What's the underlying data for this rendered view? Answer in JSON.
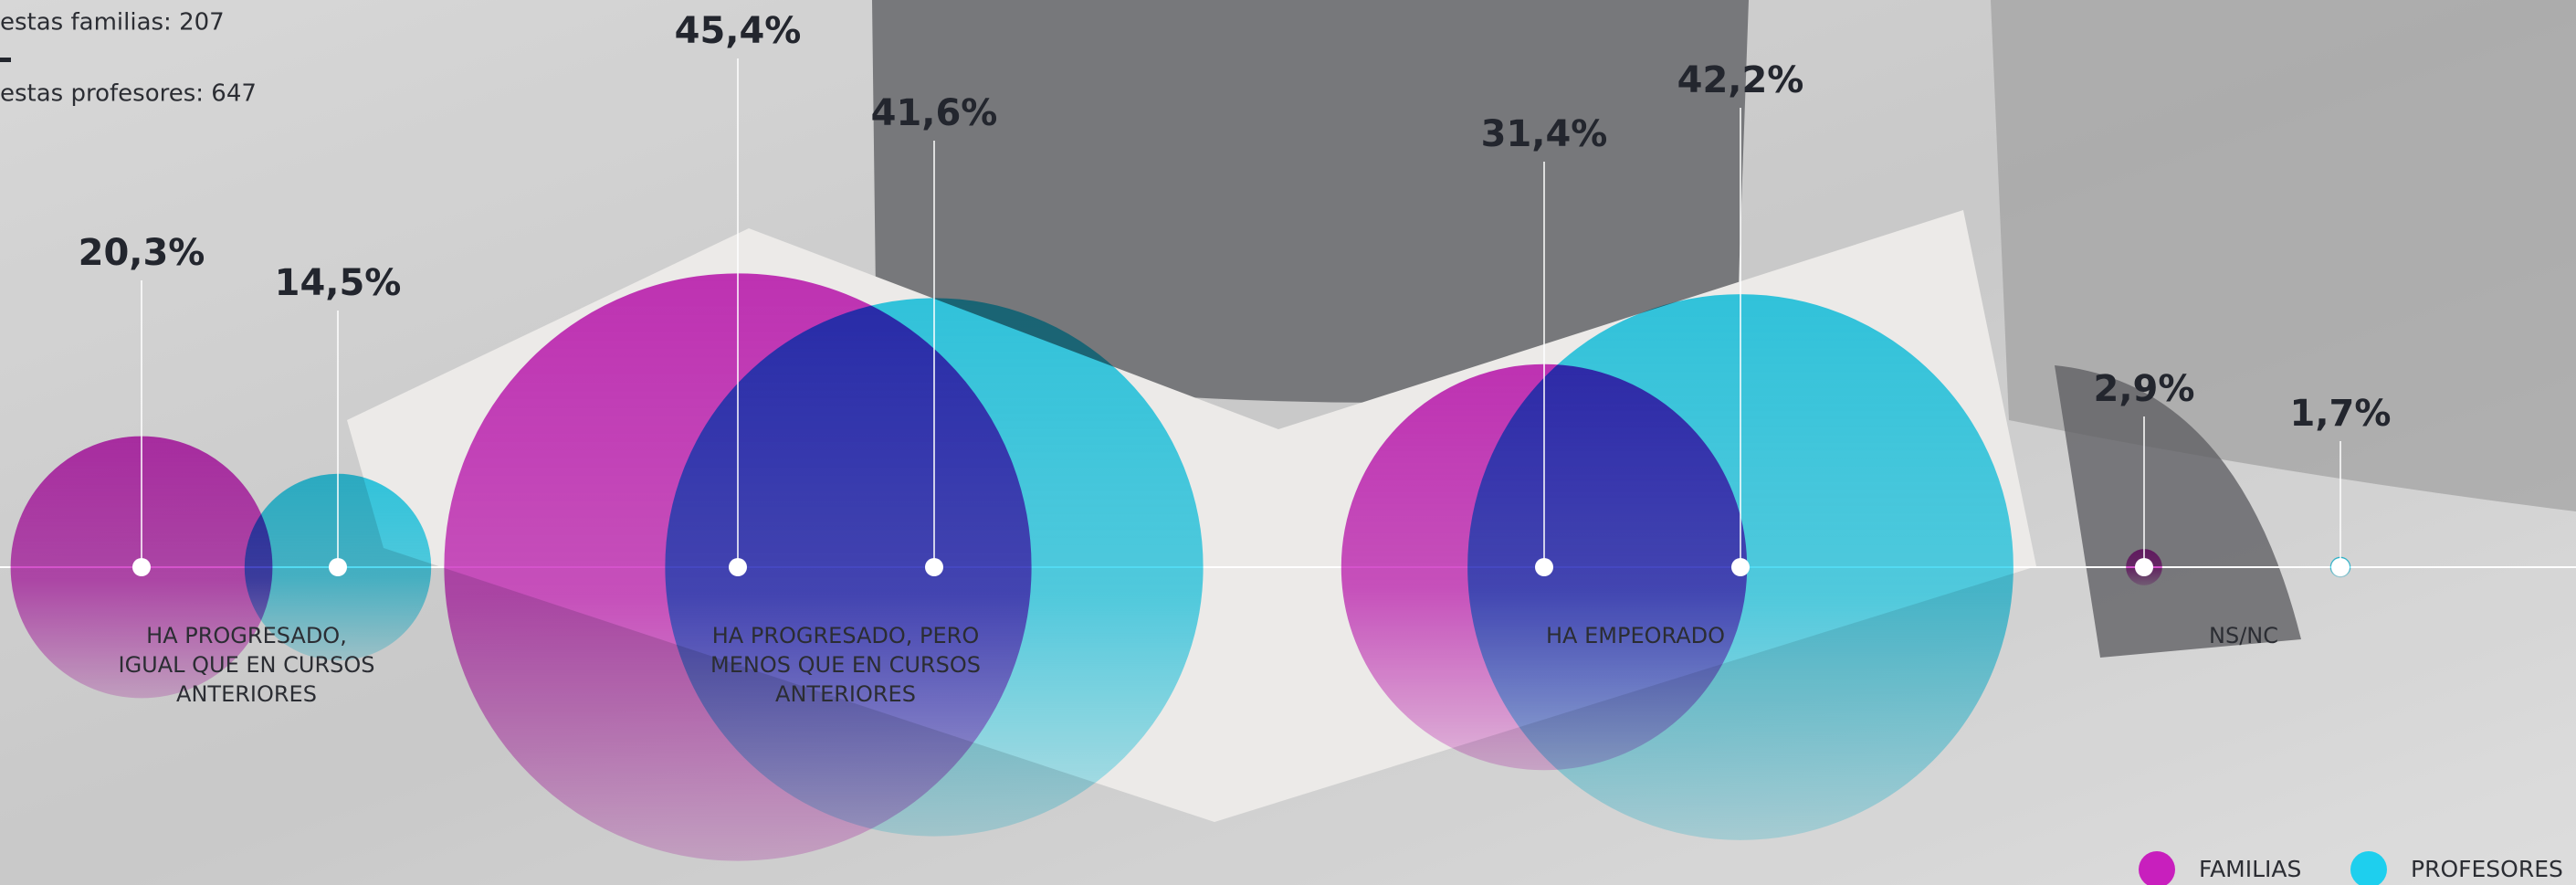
{
  "chart_data": {
    "type": "bubble",
    "notes": [
      "estas familias: 207",
      "estas profesores: 647"
    ],
    "categories": [
      [
        "HA PROGRESADO,",
        "IGUAL QUE EN CURSOS",
        "ANTERIORES"
      ],
      [
        "HA PROGRESADO, PERO",
        "MENOS QUE EN CURSOS",
        "ANTERIORES"
      ],
      [
        "HA EMPEORADO"
      ],
      [
        "NS/NC"
      ]
    ],
    "series": [
      {
        "name": "FAMILIAS",
        "color": "#c81fbd",
        "values": [
          20.3,
          45.4,
          31.4,
          2.9
        ],
        "value_labels": [
          "20,3%",
          "45,4%",
          "31,4%",
          "2,9%"
        ]
      },
      {
        "name": "PROFESORES",
        "color": "#1ecfee",
        "values": [
          14.5,
          41.6,
          42.2,
          1.7
        ],
        "value_labels": [
          "14,5%",
          "41,6%",
          "42,2%",
          "1,7%"
        ]
      }
    ]
  }
}
